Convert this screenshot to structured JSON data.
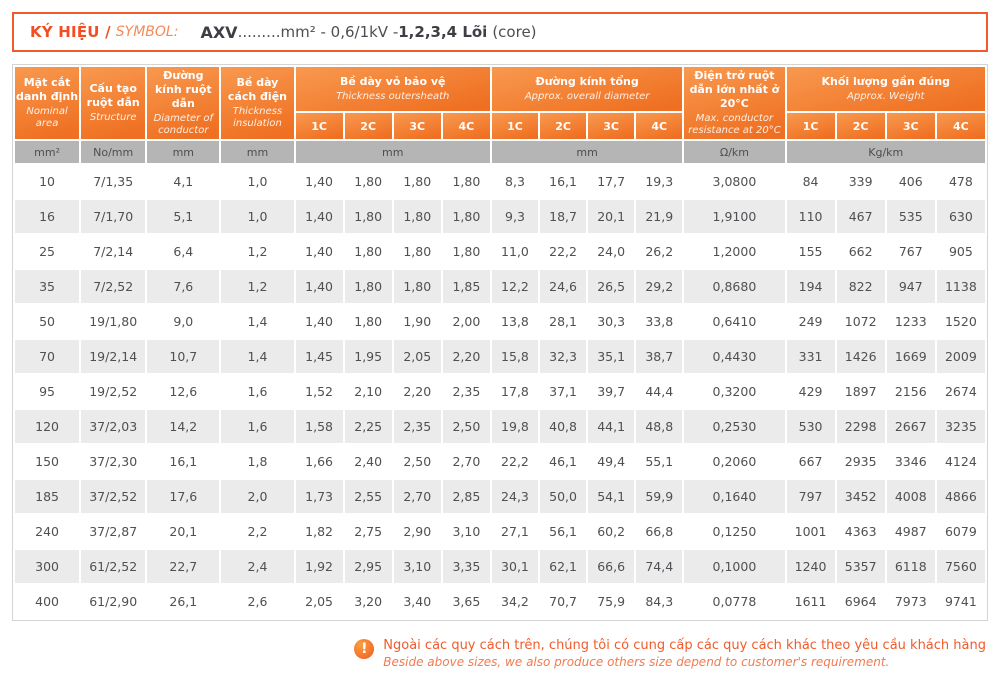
{
  "symbol_bar": {
    "label_vi": "KÝ HIỆU /",
    "label_en": "SYMBOL:",
    "code": "AXV",
    "spec": ".........mm² - 0,6/1kV - ",
    "cores": "1,2,3,4 Lõi",
    "cores_note": "(core)"
  },
  "table": {
    "columns": [
      {
        "vi": "Mặt cắt danh định",
        "en": "Nominal area"
      },
      {
        "vi": "Cấu tạo ruột dẫn",
        "en": "Structure"
      },
      {
        "vi": "Đường kính ruột dẫn",
        "en": "Diameter of conductor"
      },
      {
        "vi": "Bề dày cách điện",
        "en": "Thickness insulation"
      },
      {
        "vi": "Bề dày vỏ bảo vệ",
        "en": "Thickness outersheath"
      },
      {
        "vi": "Đường kính tổng",
        "en": "Approx. overall diameter"
      },
      {
        "vi": "Điện trở ruột dẫn lớn nhất ở 20°C",
        "en": "Max. conductor resistance at 20°C"
      },
      {
        "vi": "Khối lượng gần đúng",
        "en": "Approx. Weight"
      }
    ],
    "core_labels": [
      "1C",
      "2C",
      "3C",
      "4C"
    ],
    "units": [
      "mm²",
      "No/mm",
      "mm",
      "mm",
      "mm",
      "mm",
      "Ω/km",
      "Kg/km"
    ],
    "rows": [
      [
        "10",
        "7/1,35",
        "4,1",
        "1,0",
        "1,40",
        "1,80",
        "1,80",
        "1,80",
        "8,3",
        "16,1",
        "17,7",
        "19,3",
        "3,0800",
        "84",
        "339",
        "406",
        "478"
      ],
      [
        "16",
        "7/1,70",
        "5,1",
        "1,0",
        "1,40",
        "1,80",
        "1,80",
        "1,80",
        "9,3",
        "18,7",
        "20,1",
        "21,9",
        "1,9100",
        "110",
        "467",
        "535",
        "630"
      ],
      [
        "25",
        "7/2,14",
        "6,4",
        "1,2",
        "1,40",
        "1,80",
        "1,80",
        "1,80",
        "11,0",
        "22,2",
        "24,0",
        "26,2",
        "1,2000",
        "155",
        "662",
        "767",
        "905"
      ],
      [
        "35",
        "7/2,52",
        "7,6",
        "1,2",
        "1,40",
        "1,80",
        "1,80",
        "1,85",
        "12,2",
        "24,6",
        "26,5",
        "29,2",
        "0,8680",
        "194",
        "822",
        "947",
        "1138"
      ],
      [
        "50",
        "19/1,80",
        "9,0",
        "1,4",
        "1,40",
        "1,80",
        "1,90",
        "2,00",
        "13,8",
        "28,1",
        "30,3",
        "33,8",
        "0,6410",
        "249",
        "1072",
        "1233",
        "1520"
      ],
      [
        "70",
        "19/2,14",
        "10,7",
        "1,4",
        "1,45",
        "1,95",
        "2,05",
        "2,20",
        "15,8",
        "32,3",
        "35,1",
        "38,7",
        "0,4430",
        "331",
        "1426",
        "1669",
        "2009"
      ],
      [
        "95",
        "19/2,52",
        "12,6",
        "1,6",
        "1,52",
        "2,10",
        "2,20",
        "2,35",
        "17,8",
        "37,1",
        "39,7",
        "44,4",
        "0,3200",
        "429",
        "1897",
        "2156",
        "2674"
      ],
      [
        "120",
        "37/2,03",
        "14,2",
        "1,6",
        "1,58",
        "2,25",
        "2,35",
        "2,50",
        "19,8",
        "40,8",
        "44,1",
        "48,8",
        "0,2530",
        "530",
        "2298",
        "2667",
        "3235"
      ],
      [
        "150",
        "37/2,30",
        "16,1",
        "1,8",
        "1,66",
        "2,40",
        "2,50",
        "2,70",
        "22,2",
        "46,1",
        "49,4",
        "55,1",
        "0,2060",
        "667",
        "2935",
        "3346",
        "4124"
      ],
      [
        "185",
        "37/2,52",
        "17,6",
        "2,0",
        "1,73",
        "2,55",
        "2,70",
        "2,85",
        "24,3",
        "50,0",
        "54,1",
        "59,9",
        "0,1640",
        "797",
        "3452",
        "4008",
        "4866"
      ],
      [
        "240",
        "37/2,87",
        "20,1",
        "2,2",
        "1,82",
        "2,75",
        "2,90",
        "3,10",
        "27,1",
        "56,1",
        "60,2",
        "66,8",
        "0,1250",
        "1001",
        "4363",
        "4987",
        "6079"
      ],
      [
        "300",
        "61/2,52",
        "22,7",
        "2,4",
        "1,92",
        "2,95",
        "3,10",
        "3,35",
        "30,1",
        "62,1",
        "66,6",
        "74,4",
        "0,1000",
        "1240",
        "5357",
        "6118",
        "7560"
      ],
      [
        "400",
        "61/2,90",
        "26,1",
        "2,6",
        "2,05",
        "3,20",
        "3,40",
        "3,65",
        "34,2",
        "70,7",
        "75,9",
        "84,3",
        "0,0778",
        "1611",
        "6964",
        "7973",
        "9741"
      ]
    ]
  },
  "note": {
    "icon": "warning-exclamation",
    "vi": "Ngoài các quy cách trên, chúng tôi có cung cấp các quy cách khác theo yêu cầu khách hàng",
    "en": "Beside above sizes, we also produce others size depend to customer's requirement."
  },
  "colors": {
    "accent_orange": "#ef7022",
    "header_gradient_top": "#f8994f",
    "border_orange": "#f15b2b",
    "unit_gray": "#b5b5b5",
    "row_alt_gray": "#ebebeb",
    "text_dark": "#4f5053"
  }
}
